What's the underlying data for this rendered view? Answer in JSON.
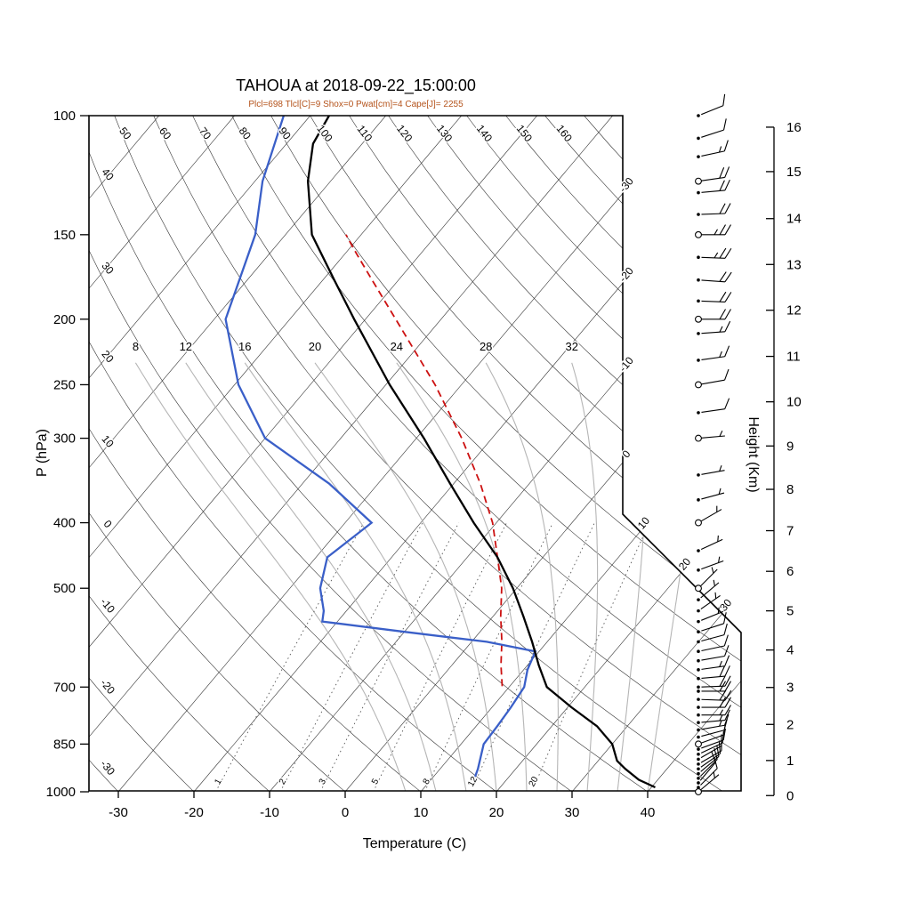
{
  "title": "TAHOUA at 2018-09-22_15:00:00",
  "subtitle": "Plcl=698 Tlcl[C]=9 Shox=0 Pwat[cm]=4 Cape[J]= 2255",
  "axes": {
    "pressure_label": "P (hPa)",
    "temperature_label": "Temperature (C)",
    "height_label": "Height (Km)"
  },
  "colors": {
    "temperature_curve": "#000000",
    "dewpoint_curve": "#3a5fc8",
    "parcel_curve": "#cc1111",
    "subtitle": "#b4521a",
    "grid_dark": "#333333",
    "moist_adiabat": "#b5b5b5",
    "mixing_ratio": "#555555"
  },
  "chart_data": {
    "type": "skewt",
    "station": "TAHOUA",
    "datetime": "2018-09-22_15:00:00",
    "indices": {
      "Plcl_hPa": 698,
      "Tlcl_C": 9,
      "Showalter": 0,
      "Pwat_cm": 4,
      "Cape_J": 2255
    },
    "pressure_ticks": [
      100,
      150,
      200,
      250,
      300,
      400,
      500,
      700,
      850,
      1000
    ],
    "temperature_ticks": [
      -30,
      -20,
      -10,
      0,
      10,
      20,
      30,
      40
    ],
    "height_ticks_km": [
      0,
      1,
      2,
      3,
      4,
      5,
      6,
      7,
      8,
      9,
      10,
      11,
      12,
      13,
      14,
      15,
      16
    ],
    "height_pressure_map": [
      [
        0,
        1013
      ],
      [
        1,
        899
      ],
      [
        2,
        795
      ],
      [
        3,
        701
      ],
      [
        4,
        617
      ],
      [
        5,
        540
      ],
      [
        6,
        472
      ],
      [
        7,
        411
      ],
      [
        8,
        357
      ],
      [
        9,
        308
      ],
      [
        10,
        265
      ],
      [
        11,
        227
      ],
      [
        12,
        194
      ],
      [
        13,
        166
      ],
      [
        14,
        142
      ],
      [
        15,
        121
      ],
      [
        16,
        104
      ]
    ],
    "isotherm_values": [
      -110,
      -100,
      -90,
      -80,
      -70,
      -60,
      -50,
      -40,
      -30,
      -20,
      -10,
      0,
      10,
      20,
      30,
      40
    ],
    "isotherm_edge_labels": [
      -30,
      -20,
      -10,
      0,
      10,
      20,
      30
    ],
    "dry_adiabat_values": [
      -40,
      -30,
      -20,
      -10,
      0,
      10,
      20,
      30,
      40,
      50,
      60,
      70,
      80,
      90,
      100,
      110,
      120,
      130,
      140,
      150,
      160,
      170,
      180,
      190,
      200
    ],
    "dry_adiabat_top_labels": [
      50,
      60,
      70,
      80,
      90,
      100,
      110,
      120,
      130,
      140,
      150,
      160
    ],
    "dry_adiabat_left_labels": [
      40,
      30,
      20,
      10,
      0,
      -10,
      -20,
      -30
    ],
    "moist_adiabat_values": [
      8,
      12,
      16,
      20,
      24,
      28,
      32,
      36,
      40
    ],
    "moist_adiabat_labels": [
      8,
      12,
      16,
      20,
      24,
      28,
      32
    ],
    "mixing_ratio_values": [
      1,
      2,
      3,
      5,
      8,
      12,
      20
    ],
    "sounding": {
      "temperature": [
        [
          985,
          40.5
        ],
        [
          960,
          37.5
        ],
        [
          925,
          34.5
        ],
        [
          900,
          32.5
        ],
        [
          850,
          30
        ],
        [
          800,
          26
        ],
        [
          750,
          20.5
        ],
        [
          700,
          15
        ],
        [
          650,
          11.5
        ],
        [
          600,
          8
        ],
        [
          550,
          4
        ],
        [
          500,
          -0.5
        ],
        [
          450,
          -6
        ],
        [
          400,
          -13
        ],
        [
          350,
          -20.5
        ],
        [
          300,
          -29
        ],
        [
          250,
          -39.5
        ],
        [
          200,
          -51.5
        ],
        [
          175,
          -58.5
        ],
        [
          150,
          -66.5
        ],
        [
          125,
          -73
        ],
        [
          110,
          -76.5
        ],
        [
          100,
          -77.5
        ]
      ],
      "dewpoint": [
        [
          950,
          15.5
        ],
        [
          925,
          15
        ],
        [
          850,
          13
        ],
        [
          800,
          12.8
        ],
        [
          750,
          12.5
        ],
        [
          700,
          12
        ],
        [
          660,
          10.5
        ],
        [
          620,
          9.5
        ],
        [
          600,
          2
        ],
        [
          580,
          -10
        ],
        [
          560,
          -22
        ],
        [
          540,
          -23
        ],
        [
          500,
          -26
        ],
        [
          450,
          -28.5
        ],
        [
          400,
          -26.5
        ],
        [
          350,
          -36.5
        ],
        [
          300,
          -50
        ],
        [
          250,
          -59.5
        ],
        [
          200,
          -68.5
        ],
        [
          150,
          -74
        ],
        [
          125,
          -79
        ],
        [
          100,
          -83.5
        ]
      ],
      "parcel": [
        [
          698,
          9
        ],
        [
          650,
          6.5
        ],
        [
          600,
          4
        ],
        [
          550,
          1
        ],
        [
          500,
          -2
        ],
        [
          450,
          -6
        ],
        [
          400,
          -10.5
        ],
        [
          350,
          -16.5
        ],
        [
          300,
          -24
        ],
        [
          250,
          -33.5
        ],
        [
          200,
          -46
        ],
        [
          175,
          -53.5
        ],
        [
          160,
          -58.5
        ],
        [
          150,
          -62
        ]
      ]
    },
    "winds": [
      [
        1000,
        5,
        50,
        1
      ],
      [
        985,
        8,
        45,
        0
      ],
      [
        970,
        8,
        40,
        0
      ],
      [
        955,
        10,
        45,
        0
      ],
      [
        940,
        10,
        50,
        0
      ],
      [
        925,
        12,
        55,
        0
      ],
      [
        910,
        10,
        60,
        0
      ],
      [
        895,
        10,
        60,
        0
      ],
      [
        880,
        12,
        65,
        0
      ],
      [
        865,
        10,
        70,
        0
      ],
      [
        850,
        10,
        70,
        1
      ],
      [
        830,
        12,
        75,
        0
      ],
      [
        810,
        15,
        80,
        0
      ],
      [
        790,
        15,
        85,
        0
      ],
      [
        770,
        15,
        90,
        0
      ],
      [
        750,
        18,
        90,
        0
      ],
      [
        730,
        20,
        92,
        0
      ],
      [
        710,
        20,
        90,
        0
      ],
      [
        700,
        20,
        88,
        0
      ],
      [
        680,
        18,
        85,
        0
      ],
      [
        660,
        15,
        82,
        0
      ],
      [
        640,
        12,
        80,
        0
      ],
      [
        620,
        10,
        78,
        0
      ],
      [
        600,
        10,
        75,
        0
      ],
      [
        580,
        8,
        72,
        0
      ],
      [
        560,
        6,
        68,
        0
      ],
      [
        540,
        5,
        55,
        0
      ],
      [
        520,
        5,
        50,
        0
      ],
      [
        500,
        5,
        45,
        1
      ],
      [
        470,
        4,
        70,
        0
      ],
      [
        440,
        5,
        65,
        0
      ],
      [
        400,
        5,
        60,
        1
      ],
      [
        370,
        4,
        75,
        0
      ],
      [
        340,
        4,
        80,
        0
      ],
      [
        300,
        5,
        85,
        1
      ],
      [
        275,
        8,
        82,
        0
      ],
      [
        250,
        10,
        80,
        1
      ],
      [
        230,
        13,
        82,
        0
      ],
      [
        210,
        15,
        86,
        0
      ],
      [
        200,
        18,
        90,
        1
      ],
      [
        188,
        20,
        92,
        0
      ],
      [
        175,
        22,
        94,
        0
      ],
      [
        162,
        24,
        92,
        0
      ],
      [
        150,
        25,
        90,
        1
      ],
      [
        140,
        22,
        88,
        0
      ],
      [
        130,
        20,
        85,
        0
      ],
      [
        125,
        18,
        82,
        1
      ],
      [
        115,
        15,
        78,
        0
      ],
      [
        108,
        12,
        72,
        0
      ],
      [
        100,
        10,
        68,
        0
      ]
    ]
  }
}
